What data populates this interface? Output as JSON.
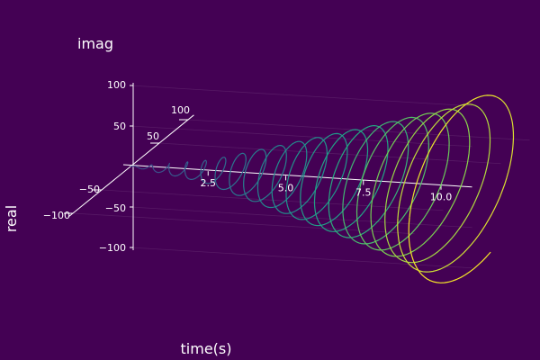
{
  "chart_data": {
    "type": "line",
    "subtype": "3d-helix",
    "background": "#440154",
    "xlabel": "time(s)",
    "ylabel": "real",
    "zlabel": "imag",
    "x_ticks": [
      "2.5",
      "5.0",
      "7.5",
      "10.0"
    ],
    "y_ticks": [
      "−100",
      "−50",
      "50",
      "100"
    ],
    "z_ticks": [
      "100",
      "50",
      "−50",
      "−100"
    ],
    "xlim": [
      0,
      11
    ],
    "ylim": [
      -110,
      110
    ],
    "zlim": [
      -110,
      110
    ],
    "grid": true,
    "colormap": "viridis",
    "series": [
      {
        "x_range": [
          0,
          11
        ],
        "frequency_hz": 1.8,
        "amplitude": [
          {
            "t": 0,
            "a": 0
          },
          {
            "t": 2.5,
            "a": 12
          },
          {
            "t": 5.0,
            "a": 36
          },
          {
            "t": 7.5,
            "a": 60
          },
          {
            "t": 10.0,
            "a": 85
          },
          {
            "t": 11.0,
            "a": 104
          }
        ]
      }
    ]
  }
}
